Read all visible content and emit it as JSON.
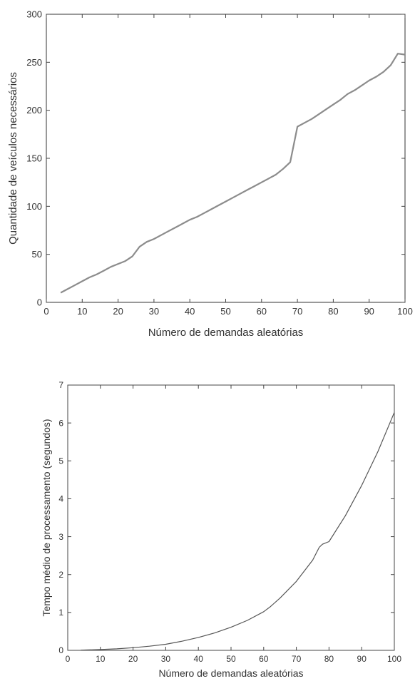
{
  "chart_data": [
    {
      "type": "line",
      "title": "",
      "xlabel": "Número de demandas aleatórias",
      "ylabel": "Quantidade de veículos necessários",
      "xlim": [
        0,
        100
      ],
      "ylim": [
        0,
        300
      ],
      "xticks": [
        0,
        10,
        20,
        30,
        40,
        50,
        60,
        70,
        80,
        90,
        100
      ],
      "yticks": [
        0,
        50,
        100,
        150,
        200,
        250,
        300
      ],
      "grid": false,
      "line_color": "#8c8c8c",
      "series": [
        {
          "x": [
            4,
            6,
            8,
            10,
            12,
            14,
            16,
            18,
            20,
            22,
            24,
            26,
            28,
            30,
            32,
            34,
            36,
            38,
            40,
            42,
            44,
            46,
            48,
            50,
            52,
            54,
            56,
            58,
            60,
            62,
            64,
            66,
            68,
            70,
            72,
            74,
            76,
            78,
            80,
            82,
            84,
            86,
            88,
            90,
            92,
            94,
            96,
            98,
            100
          ],
          "values": [
            10,
            14,
            18,
            22,
            26,
            29,
            33,
            37,
            40,
            43,
            48,
            58,
            63,
            66,
            70,
            74,
            78,
            82,
            86,
            89,
            93,
            97,
            101,
            105,
            109,
            113,
            117,
            121,
            125,
            129,
            133,
            139,
            146,
            183,
            187,
            191,
            196,
            201,
            206,
            211,
            217,
            221,
            226,
            231,
            235,
            240,
            247,
            259,
            258
          ]
        }
      ]
    },
    {
      "type": "line",
      "title": "",
      "xlabel": "Número de demandas aleatórias",
      "ylabel": "Tempo médio de processamento (segundos)",
      "xlim": [
        0,
        100
      ],
      "ylim": [
        0,
        7
      ],
      "xticks": [
        0,
        10,
        20,
        30,
        40,
        50,
        60,
        70,
        80,
        90,
        100
      ],
      "yticks": [
        0,
        1,
        2,
        3,
        4,
        5,
        6,
        7
      ],
      "grid": false,
      "line_color": "#555555",
      "series": [
        {
          "x": [
            4,
            10,
            15,
            20,
            25,
            30,
            35,
            40,
            45,
            50,
            55,
            60,
            62,
            65,
            70,
            75,
            77,
            78,
            80,
            85,
            90,
            95,
            100
          ],
          "values": [
            0.005,
            0.02,
            0.04,
            0.07,
            0.11,
            0.16,
            0.24,
            0.34,
            0.46,
            0.61,
            0.79,
            1.02,
            1.15,
            1.38,
            1.82,
            2.38,
            2.72,
            2.8,
            2.87,
            3.55,
            4.35,
            5.25,
            6.28
          ]
        }
      ]
    }
  ]
}
